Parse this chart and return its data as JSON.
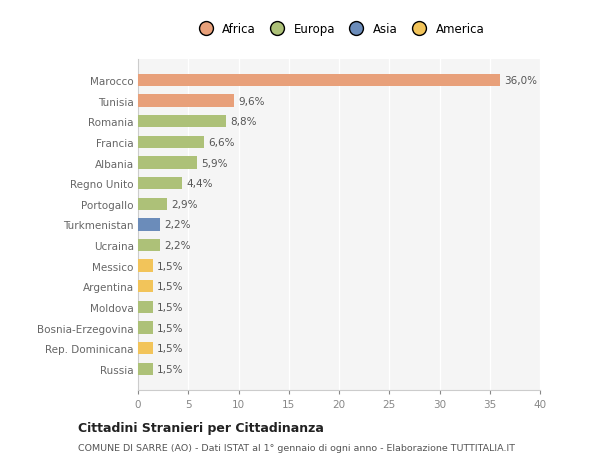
{
  "categories": [
    "Russia",
    "Rep. Dominicana",
    "Bosnia-Erzegovina",
    "Moldova",
    "Argentina",
    "Messico",
    "Ucraina",
    "Turkmenistan",
    "Portogallo",
    "Regno Unito",
    "Albania",
    "Francia",
    "Romania",
    "Tunisia",
    "Marocco"
  ],
  "values": [
    1.5,
    1.5,
    1.5,
    1.5,
    1.5,
    1.5,
    2.2,
    2.2,
    2.9,
    4.4,
    5.9,
    6.6,
    8.8,
    9.6,
    36.0
  ],
  "labels": [
    "1,5%",
    "1,5%",
    "1,5%",
    "1,5%",
    "1,5%",
    "1,5%",
    "2,2%",
    "2,2%",
    "2,9%",
    "4,4%",
    "5,9%",
    "6,6%",
    "8,8%",
    "9,6%",
    "36,0%"
  ],
  "colors": [
    "#adc178",
    "#f2c45a",
    "#adc178",
    "#adc178",
    "#f2c45a",
    "#f2c45a",
    "#adc178",
    "#6b8cba",
    "#adc178",
    "#adc178",
    "#adc178",
    "#adc178",
    "#adc178",
    "#e8a07a",
    "#e8a07a"
  ],
  "legend_labels": [
    "Africa",
    "Europa",
    "Asia",
    "America"
  ],
  "legend_colors": [
    "#e8a07a",
    "#adc178",
    "#6b8cba",
    "#f2c45a"
  ],
  "title1": "Cittadini Stranieri per Cittadinanza",
  "title2": "COMUNE DI SARRE (AO) - Dati ISTAT al 1° gennaio di ogni anno - Elaborazione TUTTITALIA.IT",
  "xlim": [
    0,
    40
  ],
  "xticks": [
    0,
    5,
    10,
    15,
    20,
    25,
    30,
    35,
    40
  ],
  "background_color": "#ffffff",
  "plot_bg_color": "#f5f5f5",
  "bar_height": 0.6,
  "label_fontsize": 7.5,
  "tick_fontsize": 7.5,
  "ylabel_fontsize": 7.5
}
